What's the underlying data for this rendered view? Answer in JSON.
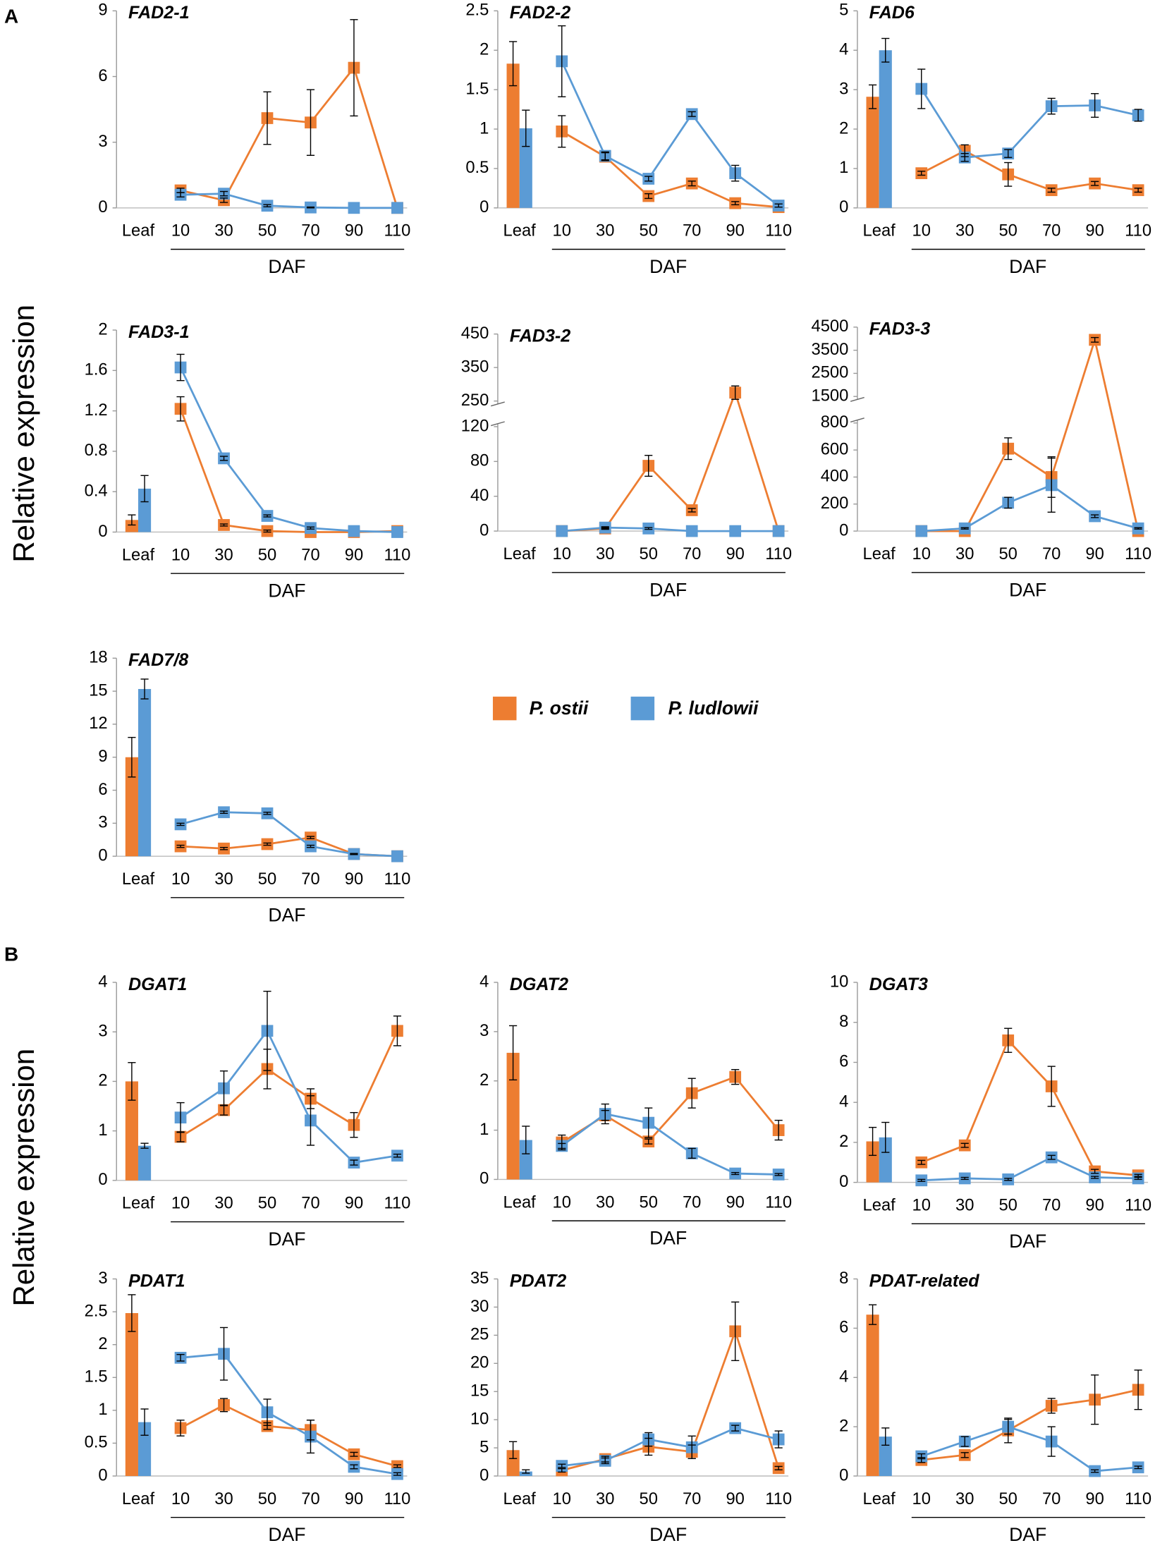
{
  "panel_labels": [
    "A",
    "B"
  ],
  "y_label": "Relative expression",
  "chart_data": [
    {
      "type": "combo",
      "title": "FAD2-1",
      "categories": [
        "Leaf",
        "10",
        "30",
        "50",
        "70",
        "90",
        "110"
      ],
      "x_label": "DAF",
      "ylim": [
        0,
        9
      ],
      "yticks": [
        0,
        3,
        6,
        9
      ],
      "series": [
        {
          "name": "P. ostii",
          "color": "#ed7d31",
          "values": [
            0,
            0.8,
            0.35,
            4.1,
            3.9,
            6.4,
            0
          ],
          "errors": [
            0,
            0.1,
            0.1,
            1.2,
            1.5,
            2.2,
            0
          ]
        },
        {
          "name": "P. ludlowii",
          "color": "#5b9bd5",
          "values": [
            0,
            0.6,
            0.65,
            0.1,
            0.02,
            0,
            0
          ],
          "errors": [
            0,
            0.1,
            0.1,
            0.05,
            0.02,
            0,
            0
          ]
        }
      ]
    },
    {
      "type": "combo",
      "title": "FAD2-2",
      "categories": [
        "Leaf",
        "10",
        "30",
        "50",
        "70",
        "90",
        "110"
      ],
      "x_label": "DAF",
      "ylim": [
        0,
        2.5
      ],
      "yticks": [
        0,
        0.5,
        1,
        1.5,
        2,
        2.5
      ],
      "series": [
        {
          "name": "P. ostii",
          "color": "#ed7d31",
          "values": [
            1.83,
            0.97,
            0.65,
            0.15,
            0.31,
            0.06,
            0.01
          ],
          "errors": [
            0.28,
            0.2,
            0.05,
            0.03,
            0.03,
            0.02,
            0
          ]
        },
        {
          "name": "P. ludlowii",
          "color": "#5b9bd5",
          "values": [
            1.01,
            1.86,
            0.66,
            0.37,
            1.19,
            0.44,
            0.03
          ],
          "errors": [
            0.23,
            0.45,
            0.05,
            0.03,
            0.03,
            0.1,
            0.02
          ]
        }
      ]
    },
    {
      "type": "combo",
      "title": "FAD6",
      "categories": [
        "Leaf",
        "10",
        "30",
        "50",
        "70",
        "90",
        "110"
      ],
      "x_label": "DAF",
      "ylim": [
        0,
        5
      ],
      "yticks": [
        0,
        1,
        2,
        3,
        4,
        5
      ],
      "series": [
        {
          "name": "P. ostii",
          "color": "#ed7d31",
          "values": [
            2.82,
            0.88,
            1.45,
            0.85,
            0.45,
            0.62,
            0.45
          ],
          "errors": [
            0.3,
            0.05,
            0.15,
            0.3,
            0.05,
            0.05,
            0.05
          ]
        },
        {
          "name": "P. ludlowii",
          "color": "#5b9bd5",
          "values": [
            4.0,
            3.02,
            1.28,
            1.38,
            2.58,
            2.6,
            2.35
          ],
          "errors": [
            0.3,
            0.5,
            0.1,
            0.1,
            0.2,
            0.3,
            0.15
          ]
        }
      ]
    },
    {
      "type": "combo",
      "title": "FAD3-1",
      "categories": [
        "Leaf",
        "10",
        "30",
        "50",
        "70",
        "90",
        "110"
      ],
      "x_label": "DAF",
      "ylim": [
        0,
        2
      ],
      "yticks": [
        0,
        0.4,
        0.8,
        1.2,
        1.6,
        2
      ],
      "series": [
        {
          "name": "P. ostii",
          "color": "#ed7d31",
          "values": [
            0.12,
            1.22,
            0.07,
            0.01,
            0,
            0,
            0.01
          ],
          "errors": [
            0.05,
            0.12,
            0.01,
            0.01,
            0,
            0,
            0
          ]
        },
        {
          "name": "P. ludlowii",
          "color": "#5b9bd5",
          "values": [
            0.43,
            1.63,
            0.73,
            0.16,
            0.04,
            0.01,
            0
          ],
          "errors": [
            0.13,
            0.13,
            0.02,
            0.01,
            0.01,
            0,
            0
          ]
        }
      ]
    },
    {
      "type": "combo",
      "title": "FAD3-2",
      "categories": [
        "Leaf",
        "10",
        "30",
        "50",
        "70",
        "90",
        "110"
      ],
      "x_label": "DAF",
      "ylim": [
        0,
        450
      ],
      "ybreak": [
        120,
        250
      ],
      "yticks": [
        0,
        40,
        80,
        120,
        250,
        350,
        450
      ],
      "series": [
        {
          "name": "P. ostii",
          "color": "#ed7d31",
          "values": [
            0,
            0,
            3,
            75,
            24,
            275,
            0
          ],
          "errors": [
            0,
            0,
            1,
            12,
            2,
            20,
            0
          ]
        },
        {
          "name": "P. ludlowii",
          "color": "#5b9bd5",
          "values": [
            0,
            0,
            4,
            3,
            0,
            0,
            0
          ],
          "errors": [
            0,
            0,
            1,
            1,
            0,
            0,
            0
          ]
        }
      ]
    },
    {
      "type": "combo",
      "title": "FAD3-3",
      "categories": [
        "Leaf",
        "10",
        "30",
        "50",
        "70",
        "90",
        "110"
      ],
      "x_label": "DAF",
      "ylim": [
        0,
        4500
      ],
      "ybreak": [
        800,
        1500
      ],
      "yticks": [
        0,
        200,
        400,
        600,
        800,
        1500,
        2500,
        3500,
        4500
      ],
      "series": [
        {
          "name": "P. ostii",
          "color": "#ed7d31",
          "values": [
            0,
            0,
            0,
            610,
            400,
            3950,
            0
          ],
          "errors": [
            0,
            0,
            0,
            80,
            150,
            100,
            0
          ]
        },
        {
          "name": "P. ludlowii",
          "color": "#5b9bd5",
          "values": [
            0,
            0,
            20,
            210,
            340,
            110,
            20
          ],
          "errors": [
            0,
            0,
            5,
            40,
            200,
            10,
            5
          ]
        }
      ]
    },
    {
      "type": "combo",
      "title": "FAD7/8",
      "categories": [
        "Leaf",
        "10",
        "30",
        "50",
        "70",
        "90",
        "110"
      ],
      "x_label": "DAF",
      "ylim": [
        0,
        18
      ],
      "yticks": [
        0,
        3,
        6,
        9,
        12,
        15,
        18
      ],
      "series": [
        {
          "name": "P. ostii",
          "color": "#ed7d31",
          "values": [
            9.0,
            0.9,
            0.7,
            1.1,
            1.7,
            0.2,
            0
          ],
          "errors": [
            1.8,
            0.1,
            0.1,
            0.1,
            0.1,
            0.05,
            0
          ]
        },
        {
          "name": "P. ludlowii",
          "color": "#5b9bd5",
          "values": [
            15.2,
            2.9,
            4.0,
            3.9,
            0.9,
            0.2,
            0
          ],
          "errors": [
            0.9,
            0.1,
            0.1,
            0.1,
            0.1,
            0.05,
            0
          ]
        }
      ]
    },
    {
      "type": "combo",
      "title": "DGAT1",
      "categories": [
        "Leaf",
        "10",
        "30",
        "50",
        "70",
        "90",
        "110"
      ],
      "x_label": "DAF",
      "ylim": [
        0,
        4
      ],
      "yticks": [
        0,
        1,
        2,
        3,
        4
      ],
      "series": [
        {
          "name": "P. ostii",
          "color": "#ed7d31",
          "values": [
            2.0,
            0.88,
            1.42,
            2.25,
            1.65,
            1.12,
            3.02
          ],
          "errors": [
            0.38,
            0.1,
            0.1,
            0.4,
            0.2,
            0.25,
            0.3
          ]
        },
        {
          "name": "P. ludlowii",
          "color": "#5b9bd5",
          "values": [
            0.7,
            1.27,
            1.86,
            3.02,
            1.21,
            0.36,
            0.5
          ],
          "errors": [
            0.05,
            0.3,
            0.35,
            0.8,
            0.5,
            0.05,
            0.03
          ]
        }
      ]
    },
    {
      "type": "combo",
      "title": "DGAT2",
      "categories": [
        "Leaf",
        "10",
        "30",
        "50",
        "70",
        "90",
        "110"
      ],
      "x_label": "DAF",
      "ylim": [
        0,
        4
      ],
      "yticks": [
        0,
        1,
        2,
        3,
        4
      ],
      "series": [
        {
          "name": "P. ostii",
          "color": "#ed7d31",
          "values": [
            2.57,
            0.75,
            1.3,
            0.77,
            1.75,
            2.08,
            1.0
          ],
          "errors": [
            0.55,
            0.15,
            0.1,
            0.05,
            0.3,
            0.15,
            0.2
          ]
        },
        {
          "name": "P. ludlowii",
          "color": "#5b9bd5",
          "values": [
            0.8,
            0.68,
            1.33,
            1.15,
            0.53,
            0.12,
            0.1
          ],
          "errors": [
            0.28,
            0.05,
            0.2,
            0.3,
            0.1,
            0.02,
            0.02
          ]
        }
      ]
    },
    {
      "type": "combo",
      "title": "DGAT3",
      "categories": [
        "Leaf",
        "10",
        "30",
        "50",
        "70",
        "90",
        "110"
      ],
      "x_label": "DAF",
      "ylim": [
        0,
        10
      ],
      "yticks": [
        0,
        2,
        4,
        6,
        8,
        10
      ],
      "series": [
        {
          "name": "P. ostii",
          "color": "#ed7d31",
          "values": [
            2.05,
            1.0,
            1.85,
            7.1,
            4.8,
            0.55,
            0.35
          ],
          "errors": [
            0.7,
            0.1,
            0.1,
            0.6,
            1.0,
            0.1,
            0.05
          ]
        },
        {
          "name": "P. ludlowii",
          "color": "#5b9bd5",
          "values": [
            2.25,
            0.1,
            0.2,
            0.15,
            1.25,
            0.25,
            0.2
          ],
          "errors": [
            0.75,
            0.05,
            0.05,
            0.05,
            0.1,
            0.05,
            0.05
          ]
        }
      ]
    },
    {
      "type": "combo",
      "title": "PDAT1",
      "categories": [
        "Leaf",
        "10",
        "30",
        "50",
        "70",
        "90",
        "110"
      ],
      "x_label": "DAF",
      "ylim": [
        0,
        3
      ],
      "yticks": [
        0,
        0.5,
        1,
        1.5,
        2,
        2.5,
        3
      ],
      "series": [
        {
          "name": "P. ostii",
          "color": "#ed7d31",
          "values": [
            2.48,
            0.73,
            1.08,
            0.76,
            0.7,
            0.33,
            0.15
          ],
          "errors": [
            0.28,
            0.12,
            0.1,
            0.05,
            0.15,
            0.03,
            0.02
          ]
        },
        {
          "name": "P. ludlowii",
          "color": "#5b9bd5",
          "values": [
            0.82,
            1.8,
            1.86,
            0.97,
            0.6,
            0.14,
            0.03
          ],
          "errors": [
            0.2,
            0.05,
            0.4,
            0.2,
            0.25,
            0.03,
            0.02
          ]
        }
      ]
    },
    {
      "type": "combo",
      "title": "PDAT2",
      "categories": [
        "Leaf",
        "10",
        "30",
        "50",
        "70",
        "90",
        "110"
      ],
      "x_label": "DAF",
      "ylim": [
        0,
        35
      ],
      "yticks": [
        0,
        5,
        10,
        15,
        20,
        25,
        30,
        35
      ],
      "series": [
        {
          "name": "P. ostii",
          "color": "#ed7d31",
          "values": [
            4.6,
            1.0,
            3.0,
            5.2,
            4.3,
            25.7,
            1.4
          ],
          "errors": [
            1.5,
            0.3,
            0.5,
            1.5,
            1.2,
            5.2,
            0.3
          ]
        },
        {
          "name": "P. ludlowii",
          "color": "#5b9bd5",
          "values": [
            0.8,
            1.8,
            2.7,
            6.5,
            5.1,
            8.5,
            6.5
          ],
          "errors": [
            0.3,
            0.3,
            0.5,
            1.2,
            2,
            0.5,
            1.5
          ]
        }
      ]
    },
    {
      "type": "combo",
      "title": "PDAT-related",
      "categories": [
        "Leaf",
        "10",
        "30",
        "50",
        "70",
        "90",
        "110"
      ],
      "x_label": "DAF",
      "ylim": [
        0,
        8
      ],
      "yticks": [
        0,
        2,
        4,
        6,
        8
      ],
      "series": [
        {
          "name": "P. ostii",
          "color": "#ed7d31",
          "values": [
            6.55,
            0.65,
            0.85,
            1.85,
            2.85,
            3.1,
            3.5
          ],
          "errors": [
            0.4,
            0.1,
            0.1,
            0.5,
            0.3,
            1.0,
            0.8
          ]
        },
        {
          "name": "P. ludlowii",
          "color": "#5b9bd5",
          "values": [
            1.6,
            0.8,
            1.4,
            2.0,
            1.4,
            0.2,
            0.35
          ],
          "errors": [
            0.35,
            0.1,
            0.2,
            0.3,
            0.6,
            0.05,
            0.05
          ]
        }
      ]
    }
  ]
}
